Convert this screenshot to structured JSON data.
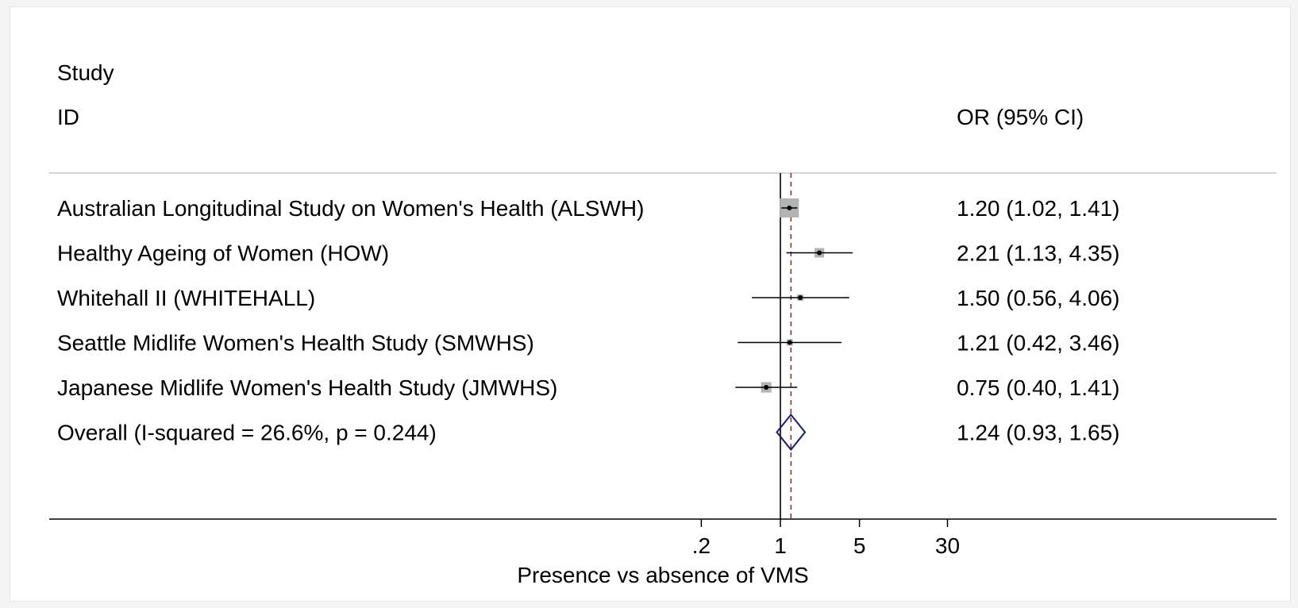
{
  "chart_data": {
    "type": "forest",
    "header": {
      "study_line1": "Study",
      "study_line2": "ID",
      "estimate_header": "OR (95% CI)"
    },
    "xlabel": "Presence vs absence of VMS",
    "x_scale": "log",
    "x_ticks": [
      {
        "value": 0.2,
        "label": ".2"
      },
      {
        "value": 1,
        "label": "1"
      },
      {
        "value": 5,
        "label": "5"
      },
      {
        "value": 30,
        "label": "30"
      }
    ],
    "null_line": 1,
    "studies": [
      {
        "label": "Australian Longitudinal Study on Women's Health (ALSWH)",
        "or": 1.2,
        "lower": 1.02,
        "upper": 1.41,
        "weight": 1.0,
        "estimate_text": "1.20 (1.02, 1.41)"
      },
      {
        "label": "Healthy Ageing of Women (HOW)",
        "or": 2.21,
        "lower": 1.13,
        "upper": 4.35,
        "weight": 0.25,
        "estimate_text": "2.21 (1.13, 4.35)"
      },
      {
        "label": "Whitehall II (WHITEHALL)",
        "or": 1.5,
        "lower": 0.56,
        "upper": 4.06,
        "weight": 0.1,
        "estimate_text": "1.50 (0.56, 4.06)"
      },
      {
        "label": "Seattle Midlife Women's Health Study (SMWHS)",
        "or": 1.21,
        "lower": 0.42,
        "upper": 3.46,
        "weight": 0.08,
        "estimate_text": "1.21 (0.42, 3.46)"
      },
      {
        "label": "Japanese Midlife Women's Health Study (JMWHS)",
        "or": 0.75,
        "lower": 0.4,
        "upper": 1.41,
        "weight": 0.3,
        "estimate_text": "0.75 (0.40, 1.41)"
      }
    ],
    "overall": {
      "label": "Overall  (I-squared = 26.6%, p = 0.244)",
      "or": 1.24,
      "lower": 0.93,
      "upper": 1.65,
      "estimate_text": "1.24 (0.93, 1.65)"
    },
    "colors": {
      "marker_box": "#b3b3b3",
      "diamond": "#1a1a6e",
      "overall_line": "#8b1a1a",
      "line": "#000000"
    }
  }
}
